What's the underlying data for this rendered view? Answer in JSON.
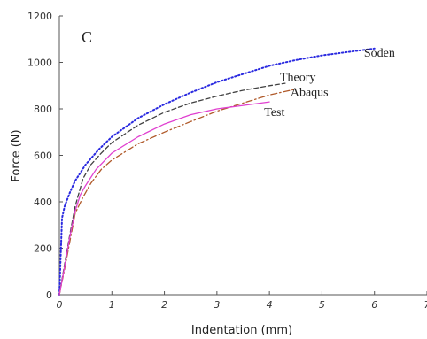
{
  "chart_data": {
    "type": "line",
    "panel_label": "C",
    "xlabel": "Indentation (mm)",
    "ylabel": "Force (N)",
    "xlim": [
      0,
      7
    ],
    "ylim": [
      0,
      1200
    ],
    "xticks": [
      "0",
      "1",
      "2",
      "3",
      "4",
      "5",
      "6",
      "7"
    ],
    "yticks": [
      "0",
      "200",
      "400",
      "600",
      "800",
      "1000",
      "1200"
    ],
    "grid": false,
    "legend": "none",
    "series": [
      {
        "name": "Soden",
        "color": "#2a2ae0",
        "style": "dotted",
        "x": [
          0,
          0.05,
          0.1,
          0.2,
          0.3,
          0.5,
          0.75,
          1,
          1.5,
          2,
          2.5,
          3,
          3.5,
          4,
          4.5,
          5,
          5.5,
          6
        ],
        "y": [
          0,
          330,
          380,
          440,
          490,
          560,
          625,
          680,
          760,
          820,
          870,
          915,
          950,
          985,
          1010,
          1030,
          1045,
          1060
        ]
      },
      {
        "name": "Theory",
        "color": "#404040",
        "style": "dashed",
        "x": [
          0,
          0.1,
          0.2,
          0.3,
          0.45,
          0.6,
          0.8,
          1,
          1.5,
          2,
          2.5,
          3,
          3.5,
          4,
          4.3
        ],
        "y": [
          0,
          130,
          260,
          380,
          500,
          560,
          610,
          655,
          730,
          785,
          825,
          855,
          880,
          900,
          910
        ]
      },
      {
        "name": "Abaqus",
        "color": "#b05a2a",
        "style": "dashdot",
        "x": [
          0,
          0.1,
          0.2,
          0.3,
          0.45,
          0.6,
          0.8,
          1,
          1.5,
          2,
          2.5,
          3,
          3.5,
          4,
          4.5
        ],
        "y": [
          0,
          110,
          230,
          350,
          420,
          480,
          540,
          580,
          650,
          700,
          745,
          790,
          825,
          860,
          885
        ]
      },
      {
        "name": "Test",
        "color": "#e040d0",
        "style": "solid",
        "x": [
          0,
          0.1,
          0.2,
          0.3,
          0.4,
          0.5,
          0.7,
          1,
          1.5,
          2,
          2.5,
          3,
          3.5,
          4
        ],
        "y": [
          0,
          120,
          250,
          360,
          430,
          470,
          540,
          610,
          680,
          735,
          775,
          800,
          815,
          830
        ]
      }
    ],
    "annotations": [
      {
        "text": "Soden",
        "x": 5.8,
        "y": 1025,
        "series": "Soden"
      },
      {
        "text": "Theory",
        "x": 4.2,
        "y": 920,
        "series": "Theory"
      },
      {
        "text": "Abaqus",
        "x": 4.4,
        "y": 855,
        "series": "Abaqus"
      },
      {
        "text": "Test",
        "x": 3.9,
        "y": 770,
        "series": "Test"
      }
    ]
  }
}
